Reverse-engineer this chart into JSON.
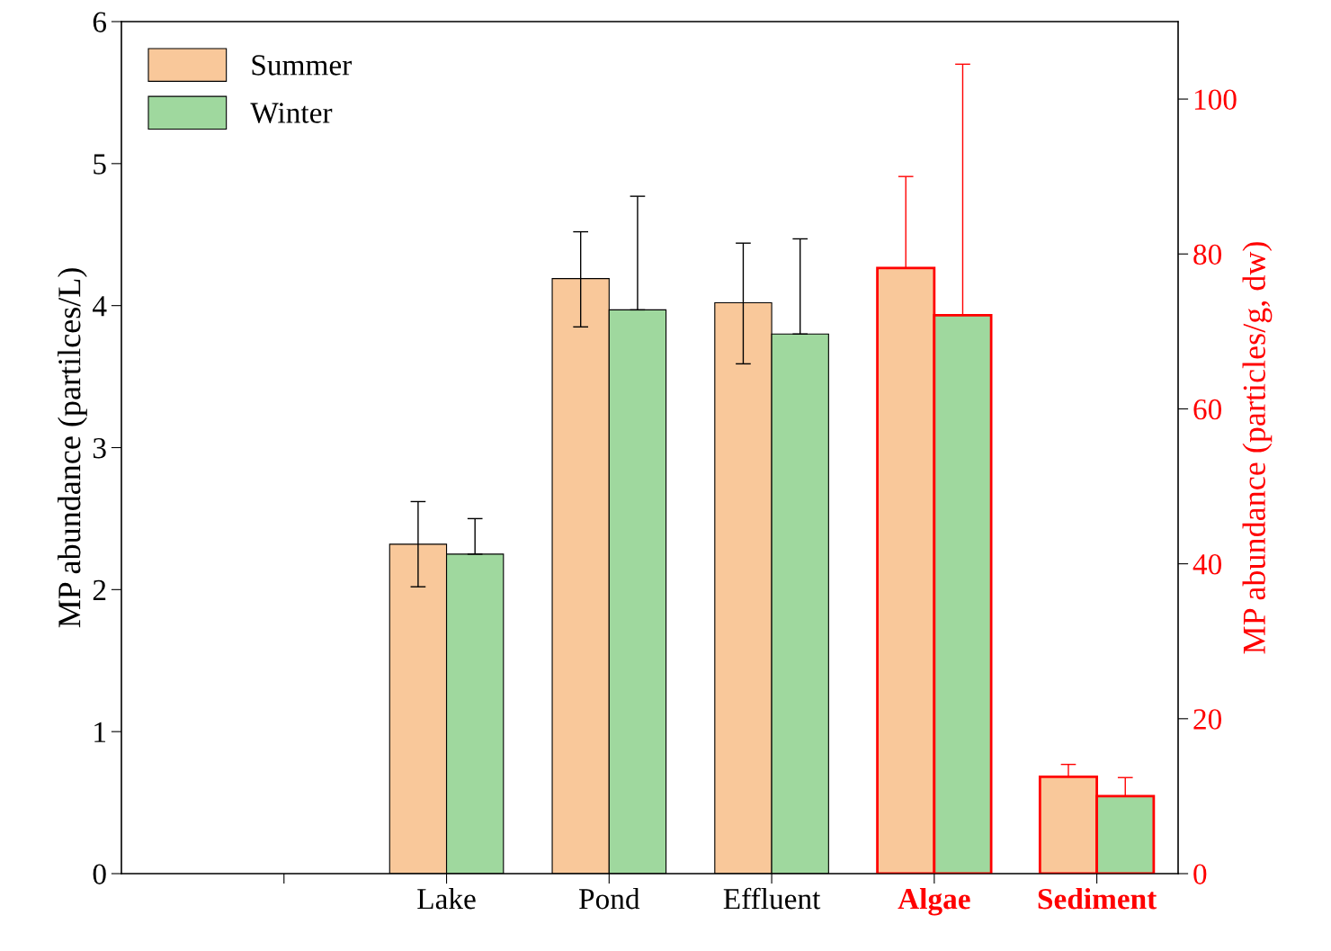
{
  "chart_data": {
    "type": "bar",
    "categories": [
      null,
      "Lake",
      "Pond",
      "Effluent",
      "Algae",
      "Sediment"
    ],
    "ylabel": "MP abundance (partilces/L)",
    "y2label": "MP abundance (particles/g, dw)",
    "ylim": [
      0,
      6
    ],
    "yticks": [
      0,
      1,
      2,
      3,
      4,
      5,
      6
    ],
    "y2lim": [
      0,
      110
    ],
    "y2ticks": [
      0,
      20,
      40,
      60,
      80,
      100
    ],
    "legend": "top left",
    "grid": false,
    "series": [
      {
        "name": "Summer",
        "color": "#f9c89a",
        "values": [
          null,
          2.32,
          4.19,
          4.02,
          null,
          null
        ],
        "errors": [
          null,
          [
            2.02,
            2.62
          ],
          [
            3.85,
            4.52
          ],
          [
            3.59,
            4.44
          ],
          null,
          null
        ]
      },
      {
        "name": "Winter",
        "color": "#9fd89e",
        "values": [
          null,
          2.25,
          3.97,
          3.8,
          null,
          null
        ],
        "errors": [
          null,
          [
            2.25,
            2.5
          ],
          [
            3.97,
            4.77
          ],
          [
            3.8,
            4.47
          ],
          null,
          null
        ]
      },
      {
        "color": "#f9c89a",
        "axis": "y2",
        "values": [
          null,
          null,
          null,
          null,
          78.2,
          12.5
        ],
        "errors": [
          null,
          null,
          null,
          null,
          [
            78.2,
            90
          ],
          [
            12.5,
            14.1
          ]
        ]
      },
      {
        "color": "#9fd89e",
        "axis": "y2",
        "values": [
          null,
          null,
          null,
          null,
          72.1,
          10
        ],
        "errors": [
          null,
          null,
          null,
          null,
          [
            72.1,
            104.5
          ],
          [
            10,
            12.4
          ]
        ]
      }
    ]
  }
}
